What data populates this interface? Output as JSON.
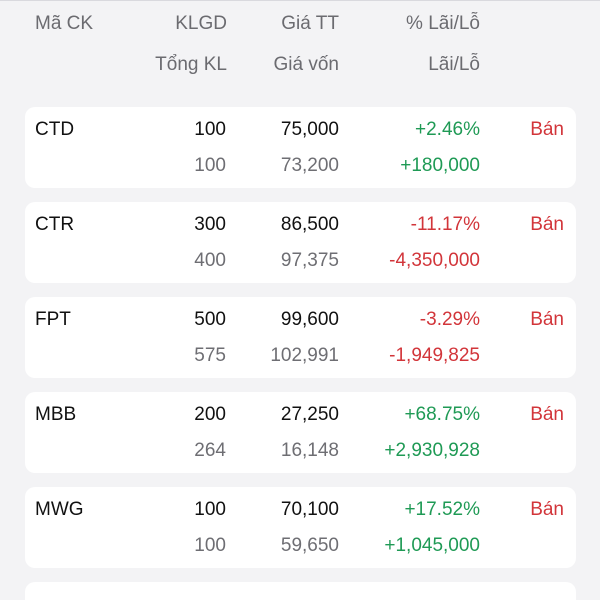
{
  "header": {
    "symbol": "Mã CK",
    "klgd": "KLGD",
    "price": "Giá TT",
    "pct": "% Lãi/Lỗ",
    "total_vol": "Tổng KL",
    "cost": "Giá vốn",
    "pnl": "Lãi/Lỗ"
  },
  "rows": [
    {
      "symbol": "CTD",
      "klgd": "100",
      "price": "75,000",
      "pct": "+2.46%",
      "total_vol": "100",
      "cost": "73,200",
      "pnl": "+180,000",
      "status": "positive",
      "action": "Bán"
    },
    {
      "symbol": "CTR",
      "klgd": "300",
      "price": "86,500",
      "pct": "-11.17%",
      "total_vol": "400",
      "cost": "97,375",
      "pnl": "-4,350,000",
      "status": "negative",
      "action": "Bán"
    },
    {
      "symbol": "FPT",
      "klgd": "500",
      "price": "99,600",
      "pct": "-3.29%",
      "total_vol": "575",
      "cost": "102,991",
      "pnl": "-1,949,825",
      "status": "negative",
      "action": "Bán"
    },
    {
      "symbol": "MBB",
      "klgd": "200",
      "price": "27,250",
      "pct": "+68.75%",
      "total_vol": "264",
      "cost": "16,148",
      "pnl": "+2,930,928",
      "status": "positive",
      "action": "Bán"
    },
    {
      "symbol": "MWG",
      "klgd": "100",
      "price": "70,100",
      "pct": "+17.52%",
      "total_vol": "100",
      "cost": "59,650",
      "pnl": "+1,045,000",
      "status": "positive",
      "action": "Bán"
    }
  ],
  "colors": {
    "positive": "#1f9a55",
    "negative": "#d2353a",
    "sell": "#d2353a"
  }
}
